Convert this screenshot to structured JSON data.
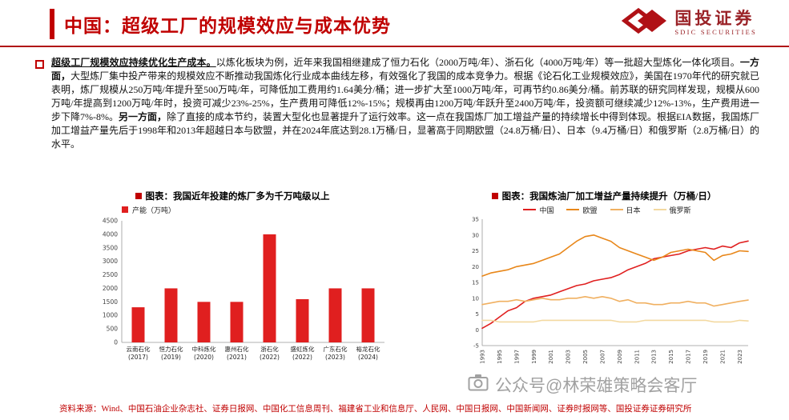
{
  "header": {
    "title": "中国：超级工厂的规模效应与成本优势",
    "logo": {
      "name": "国投证券",
      "sub": "SDIC SECURITIES"
    }
  },
  "body": {
    "lead": "超级工厂规模效应持续优化生产成本。",
    "s1": "以炼化板块为例，近年来我国相继建成了恒力石化（2000万吨/年）、浙石化（4000万吨/年）等一批超大型炼化一体化项目。",
    "b1": "一方面，",
    "s2": "大型炼厂集中投产带来的规模效应不断推动我国炼化行业成本曲线左移，有效强化了我国的成本竞争力。根据《论石化工业规模效应》，美国在1970年代的研究就已表明，炼厂规模从250万吨/年提升至500万吨/年，可降低加工费用约1.64美分/桶；进一步扩大至1000万吨/年，可再节约0.86美分/桶。前苏联的研究同样发现，规模从600万吨/年提高到1200万吨/年时，投资可减少23%-25%，生产费用可降低12%-15%；规模再由1200万吨/年跃升至2400万吨/年，投资额可继续减少12%-13%，生产费用进一步下降7%-8%。",
    "b2": "另一方面，",
    "s3": "除了直接的成本节约，装置大型化也显著提升了运行效率。这一点在我国炼厂加工增益产量的持续增长中得到体现。根据EIA数据，我国炼厂加工增益产量先后于1998年和2013年超越日本与欧盟，并在2024年底达到28.1万桶/日，显著高于同期欧盟（24.8万桶/日）、日本（9.4万桶/日）和俄罗斯（2.8万桶/日）的水平。"
  },
  "chart_data": [
    {
      "type": "bar",
      "title": "图表：我国近年投建的炼厂多为千万吨级以上",
      "legend": "产能（万吨）",
      "categories": [
        "云南石化",
        "恒力石化",
        "中科炼化",
        "惠州石化",
        "浙石化",
        "盛虹炼化",
        "广东石化",
        "裕龙石化"
      ],
      "years": [
        "(2017)",
        "(2019)",
        "(2020)",
        "(2021)",
        "(2022)",
        "(2022)",
        "(2023)",
        "(2024)"
      ],
      "values": [
        1300,
        2000,
        1500,
        1500,
        4000,
        1600,
        2000,
        2000
      ],
      "xlabel": "",
      "ylabel": "产能（万吨）",
      "ylim": [
        0,
        4500
      ],
      "ystep": 500,
      "grid": false,
      "bar_color": "#e01f1f"
    },
    {
      "type": "line",
      "title": "图表：我国炼油厂加工增益产量持续提升（万桶/日）",
      "x": [
        1993,
        1994,
        1995,
        1996,
        1997,
        1998,
        1999,
        2000,
        2001,
        2002,
        2003,
        2004,
        2005,
        2006,
        2007,
        2008,
        2009,
        2010,
        2011,
        2012,
        2013,
        2014,
        2015,
        2016,
        2017,
        2018,
        2019,
        2020,
        2021,
        2022,
        2023,
        2024
      ],
      "xticks": [
        1993,
        1995,
        1997,
        1999,
        2001,
        2003,
        2005,
        2007,
        2009,
        2011,
        2013,
        2015,
        2017,
        2019,
        2021,
        2023
      ],
      "ylim": [
        -5,
        35
      ],
      "ystep": 5,
      "grid": false,
      "legend_position": "top",
      "series": [
        {
          "name": "中国",
          "color": "#e01f1f",
          "values": [
            0.5,
            2,
            4,
            6,
            7,
            9,
            10,
            10.5,
            11,
            12,
            13,
            14,
            14.5,
            15.5,
            16,
            16.5,
            17.5,
            19,
            20,
            21,
            22.5,
            23,
            23.5,
            24,
            25,
            25.5,
            26,
            25.5,
            26.5,
            26,
            27.5,
            28.1
          ]
        },
        {
          "name": "欧盟",
          "color": "#e8871a",
          "values": [
            17,
            18,
            18.5,
            19,
            20,
            20.5,
            21,
            22,
            23,
            24,
            26,
            28,
            29.5,
            30,
            29,
            28,
            26,
            25,
            24,
            23,
            22,
            23,
            24.5,
            25,
            25.5,
            25,
            24.5,
            22,
            23.5,
            24,
            25,
            24.8
          ]
        },
        {
          "name": "日本",
          "color": "#f0b061",
          "values": [
            8,
            8.5,
            9,
            9,
            9.5,
            9,
            9.5,
            10,
            9.5,
            9.5,
            10,
            10,
            10.5,
            10,
            10.5,
            10,
            9,
            9.5,
            8.5,
            8.5,
            8,
            8,
            8.5,
            8.5,
            9,
            8.5,
            8.5,
            7.5,
            8,
            8.5,
            9,
            9.4
          ]
        },
        {
          "name": "俄罗斯",
          "color": "#f3d9a0",
          "values": [
            3,
            3,
            2.5,
            2.5,
            2.5,
            2.5,
            2.5,
            3,
            3,
            3,
            3,
            3,
            3,
            3,
            3,
            3,
            2.5,
            2.5,
            2.5,
            3,
            3,
            3,
            3,
            3,
            3,
            3,
            3,
            2.5,
            2.5,
            2.5,
            3,
            2.8
          ]
        }
      ]
    }
  ],
  "watermark": "公众号@林荣雄策略会客厅",
  "source": "资料来源：Wind、中国石油企业杂志社、证券日报网、中国化工信息周刊、福建省工业和信息厅、人民网、中国日报网、中国新闻网、证券时报网等、国投证券证券研究所"
}
